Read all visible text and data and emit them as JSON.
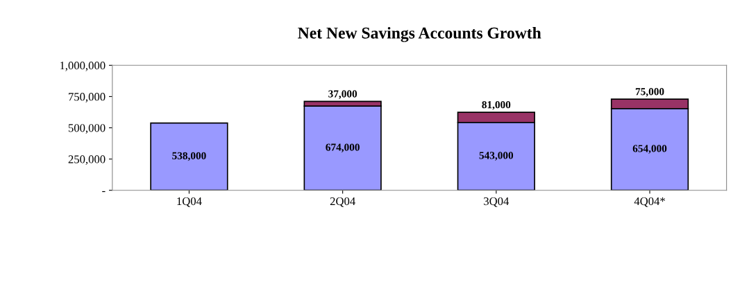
{
  "chart_data": {
    "type": "bar",
    "title": "Net New Savings Accounts Growth",
    "categories": [
      "1Q04",
      "2Q04",
      "3Q04",
      "4Q04*"
    ],
    "stacked": true,
    "series": [
      {
        "color": "#9999ff",
        "values": [
          538000,
          674000,
          543000,
          654000
        ],
        "value_labels": [
          "538,000",
          "674,000",
          "543,000",
          "654,000"
        ]
      },
      {
        "color": "#993366",
        "values": [
          null,
          37000,
          81000,
          75000
        ],
        "value_labels": [
          null,
          "37,000",
          "81,000",
          "75,000"
        ]
      }
    ],
    "ylim": [
      0,
      1000000
    ],
    "yticks": [
      {
        "value": 0,
        "label": "-"
      },
      {
        "value": 250000,
        "label": "250,000"
      },
      {
        "value": 500000,
        "label": "500,000"
      },
      {
        "value": 750000,
        "label": "750,000"
      },
      {
        "value": 1000000,
        "label": "1,000,000"
      }
    ],
    "grid": false
  }
}
